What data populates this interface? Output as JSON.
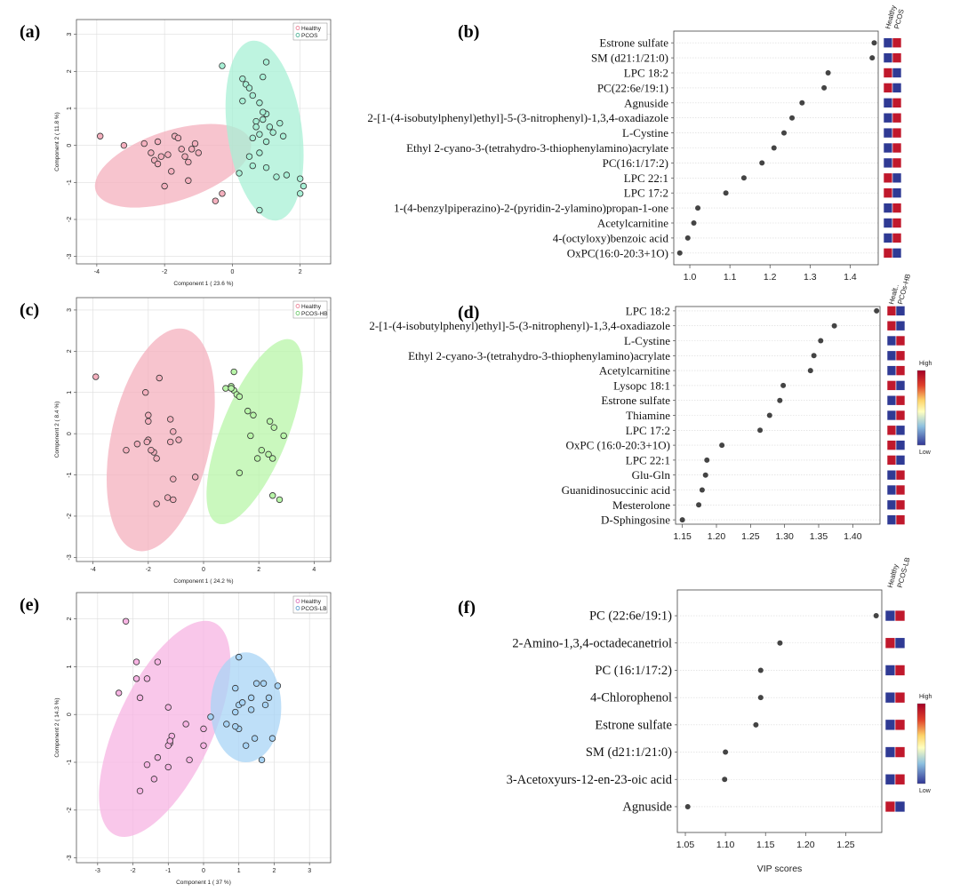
{
  "colors": {
    "high": "#c0182c",
    "low": "#2f3a94",
    "dot": "#444444",
    "grid": "#dddddd"
  },
  "chart_data": [
    {
      "panel": "(a)",
      "type": "scatter",
      "xlabel": "Component 1 ( 23.6 %)",
      "ylabel": "Component 2 ( 11.8 %)",
      "xlim": [
        -4.6,
        2.9
      ],
      "ylim": [
        -3.2,
        3.4
      ],
      "xticks": [
        -4,
        -2,
        0,
        2
      ],
      "yticks": [
        -3,
        -2,
        -1,
        0,
        1,
        2,
        3
      ],
      "legend": [
        "Healthy",
        "PCOS"
      ],
      "series": [
        {
          "name": "Healthy",
          "color": "#e8758c",
          "fill": "#f4b0be",
          "ellipse": {
            "cx": -1.75,
            "cy": -0.55,
            "rx": 2.4,
            "ry": 0.95,
            "angle": -18
          },
          "points": [
            [
              -3.9,
              0.25
            ],
            [
              -3.2,
              0
            ],
            [
              -2.6,
              0.05
            ],
            [
              -2.4,
              -0.2
            ],
            [
              -2.3,
              -0.4
            ],
            [
              -2.2,
              -0.5
            ],
            [
              -2.1,
              -0.3
            ],
            [
              -1.9,
              -0.25
            ],
            [
              -2.2,
              0.1
            ],
            [
              -1.7,
              0.25
            ],
            [
              -1.6,
              0.2
            ],
            [
              -1.5,
              -0.1
            ],
            [
              -1.4,
              -0.3
            ],
            [
              -1.3,
              -0.45
            ],
            [
              -1.2,
              -0.1
            ],
            [
              -1.0,
              -0.2
            ],
            [
              -1.8,
              -0.7
            ],
            [
              -2.0,
              -1.1
            ],
            [
              -1.3,
              -0.95
            ],
            [
              -0.5,
              -1.5
            ],
            [
              -0.3,
              -1.3
            ],
            [
              -1.1,
              0.05
            ]
          ]
        },
        {
          "name": "PCOS",
          "color": "#3aa88a",
          "fill": "#a8f0d6",
          "ellipse": {
            "cx": 0.95,
            "cy": 0.4,
            "rx": 1.1,
            "ry": 2.45,
            "angle": -8
          },
          "points": [
            [
              -0.3,
              2.15
            ],
            [
              0.3,
              1.8
            ],
            [
              0.3,
              1.2
            ],
            [
              0.4,
              1.65
            ],
            [
              0.5,
              1.55
            ],
            [
              0.6,
              1.35
            ],
            [
              0.8,
              1.15
            ],
            [
              0.9,
              1.85
            ],
            [
              1.0,
              2.25
            ],
            [
              0.7,
              0.65
            ],
            [
              0.9,
              0.7
            ],
            [
              1.0,
              0.85
            ],
            [
              1.1,
              0.5
            ],
            [
              0.6,
              0.2
            ],
            [
              0.8,
              0.3
            ],
            [
              1.0,
              0.1
            ],
            [
              1.2,
              0.35
            ],
            [
              1.4,
              0.6
            ],
            [
              1.5,
              0.25
            ],
            [
              0.5,
              -0.3
            ],
            [
              0.8,
              -0.2
            ],
            [
              1.0,
              -0.6
            ],
            [
              1.3,
              -0.85
            ],
            [
              1.6,
              -0.8
            ],
            [
              2.0,
              -0.9
            ],
            [
              2.1,
              -1.1
            ],
            [
              2.0,
              -1.3
            ],
            [
              0.6,
              -0.55
            ],
            [
              0.8,
              -1.75
            ],
            [
              0.2,
              -0.75
            ],
            [
              0.9,
              0.9
            ],
            [
              0.7,
              0.5
            ]
          ]
        }
      ]
    },
    {
      "panel": "(b)",
      "type": "scatter",
      "subtype": "vip",
      "xlim": [
        0.96,
        1.47
      ],
      "xticks": [
        1.0,
        1.1,
        1.2,
        1.3,
        1.4
      ],
      "heatmap_columns": [
        "Healthy",
        "PCOS"
      ],
      "labels": [
        "Estrone sulfate",
        "SM (d21:1/21:0)",
        "LPC 18:2",
        "PC(22:6e/19:1)",
        "Agnuside",
        "2-[1-(4-isobutylphenyl)ethyl]-5-(3-nitrophenyl)-1,3,4-oxadiazole",
        "L-Cystine",
        "Ethyl 2-cyano-3-(tetrahydro-3-thiophenylamino)acrylate",
        "PC(16:1/17:2)",
        "LPC 22:1",
        "LPC 17:2",
        "1-(4-benzylpiperazino)-2-(pyridin-2-ylamino)propan-1-one",
        "Acetylcarnitine",
        "4-(octyloxy)benzoic acid",
        "OxPC(16:0-20:3+1O)"
      ],
      "values": [
        1.46,
        1.455,
        1.345,
        1.335,
        1.28,
        1.255,
        1.235,
        1.21,
        1.18,
        1.135,
        1.09,
        1.02,
        1.01,
        0.995,
        0.975
      ],
      "heatmap": [
        [
          "low",
          "high"
        ],
        [
          "low",
          "high"
        ],
        [
          "high",
          "low"
        ],
        [
          "high",
          "low"
        ],
        [
          "low",
          "high"
        ],
        [
          "low",
          "high"
        ],
        [
          "low",
          "high"
        ],
        [
          "low",
          "high"
        ],
        [
          "low",
          "high"
        ],
        [
          "high",
          "low"
        ],
        [
          "high",
          "low"
        ],
        [
          "low",
          "high"
        ],
        [
          "low",
          "high"
        ],
        [
          "low",
          "high"
        ],
        [
          "high",
          "low"
        ]
      ]
    },
    {
      "panel": "(c)",
      "type": "scatter",
      "xlabel": "Component 1 ( 24.2 %)",
      "ylabel": "Component 2 ( 8.4 %)",
      "xlim": [
        -4.6,
        4.6
      ],
      "ylim": [
        -3.1,
        3.3
      ],
      "xticks": [
        -4,
        -2,
        0,
        2,
        4
      ],
      "yticks": [
        -3,
        -2,
        -1,
        0,
        1,
        2,
        3
      ],
      "legend": [
        "Healthy",
        "PCOS-HB"
      ],
      "series": [
        {
          "name": "Healthy",
          "color": "#e8758c",
          "fill": "#f4b0be",
          "ellipse": {
            "cx": -1.55,
            "cy": -0.15,
            "rx": 1.8,
            "ry": 2.75,
            "angle": 12
          },
          "points": [
            [
              -3.9,
              1.38
            ],
            [
              -2.1,
              1.0
            ],
            [
              -1.6,
              1.35
            ],
            [
              -2.0,
              0.45
            ],
            [
              -2.0,
              0.3
            ],
            [
              -1.2,
              0.35
            ],
            [
              -1.1,
              0.05
            ],
            [
              -2.0,
              -0.15
            ],
            [
              -2.4,
              -0.25
            ],
            [
              -2.8,
              -0.4
            ],
            [
              -1.8,
              -0.45
            ],
            [
              -1.7,
              -0.6
            ],
            [
              -1.2,
              -0.2
            ],
            [
              -0.9,
              -0.15
            ],
            [
              -1.1,
              -1.1
            ],
            [
              -0.3,
              -1.05
            ],
            [
              -1.3,
              -1.55
            ],
            [
              -1.1,
              -1.6
            ],
            [
              -1.7,
              -1.7
            ],
            [
              -1.9,
              -0.4
            ],
            [
              -2.05,
              -0.2
            ]
          ]
        },
        {
          "name": "PCOS-HB",
          "color": "#5cc25a",
          "fill": "#b8f5a8",
          "ellipse": {
            "cx": 1.85,
            "cy": 0.05,
            "rx": 1.2,
            "ry": 2.4,
            "angle": 22
          },
          "points": [
            [
              1.1,
              1.5
            ],
            [
              1.0,
              1.15
            ],
            [
              0.8,
              1.1
            ],
            [
              1.1,
              1.05
            ],
            [
              1.2,
              0.95
            ],
            [
              1.3,
              0.9
            ],
            [
              1.6,
              0.55
            ],
            [
              1.8,
              0.45
            ],
            [
              2.4,
              0.3
            ],
            [
              2.55,
              0.15
            ],
            [
              2.9,
              -0.05
            ],
            [
              1.7,
              -0.05
            ],
            [
              2.1,
              -0.4
            ],
            [
              2.35,
              -0.5
            ],
            [
              2.5,
              -0.6
            ],
            [
              1.95,
              -0.6
            ],
            [
              1.3,
              -0.95
            ],
            [
              2.5,
              -1.5
            ],
            [
              2.75,
              -1.6
            ],
            [
              1.0,
              1.1
            ]
          ]
        }
      ]
    },
    {
      "panel": "(d)",
      "type": "scatter",
      "subtype": "vip",
      "xlim": [
        1.14,
        1.44
      ],
      "xticks": [
        1.15,
        1.2,
        1.25,
        1.3,
        1.35,
        1.4
      ],
      "heatmap_columns": [
        "Healt..",
        "PCOs-HB"
      ],
      "colorbar": {
        "high": "High",
        "low": "Low"
      },
      "labels": [
        "LPC 18:2",
        "2-[1-(4-isobutylphenyl)ethyl]-5-(3-nitrophenyl)-1,3,4-oxadiazole",
        "L-Cystine",
        "Ethyl 2-cyano-3-(tetrahydro-3-thiophenylamino)acrylate",
        "Acetylcarnitine",
        "Lysopc 18:1",
        "Estrone sulfate",
        "Thiamine",
        "LPC 17:2",
        "OxPC (16:0-20:3+1O)",
        "LPC 22:1",
        "Glu-Gln",
        "Guanidinosuccinic acid",
        "Mesterolone",
        "D-Sphingosine"
      ],
      "values": [
        1.435,
        1.373,
        1.353,
        1.343,
        1.338,
        1.298,
        1.293,
        1.278,
        1.264,
        1.208,
        1.186,
        1.184,
        1.179,
        1.174,
        1.15
      ],
      "heatmap": [
        [
          "high",
          "low"
        ],
        [
          "high",
          "low"
        ],
        [
          "low",
          "high"
        ],
        [
          "low",
          "high"
        ],
        [
          "low",
          "high"
        ],
        [
          "high",
          "low"
        ],
        [
          "low",
          "high"
        ],
        [
          "low",
          "high"
        ],
        [
          "high",
          "low"
        ],
        [
          "high",
          "low"
        ],
        [
          "high",
          "low"
        ],
        [
          "low",
          "high"
        ],
        [
          "low",
          "high"
        ],
        [
          "low",
          "high"
        ],
        [
          "low",
          "high"
        ]
      ]
    },
    {
      "panel": "(e)",
      "type": "scatter",
      "xlabel": "Component 1 ( 37 %)",
      "ylabel": "Component 2 ( 14.3 %)",
      "xlim": [
        -3.6,
        3.6
      ],
      "ylim": [
        -3.1,
        2.55
      ],
      "xticks": [
        -3,
        -2,
        -1,
        0,
        1,
        2,
        3
      ],
      "yticks": [
        -3,
        -2,
        -1,
        0,
        1,
        2
      ],
      "legend": [
        "Healthy",
        "PCOS-LB"
      ],
      "series": [
        {
          "name": "Healthy",
          "color": "#d765b4",
          "fill": "#f7b4e3",
          "ellipse": {
            "cx": -1.1,
            "cy": -0.3,
            "rx": 1.35,
            "ry": 2.45,
            "angle": 25
          },
          "points": [
            [
              -2.2,
              1.95
            ],
            [
              -1.9,
              1.1
            ],
            [
              -1.3,
              1.1
            ],
            [
              -2.4,
              0.45
            ],
            [
              -1.9,
              0.75
            ],
            [
              -1.6,
              0.75
            ],
            [
              -1.8,
              0.35
            ],
            [
              -1.0,
              0.15
            ],
            [
              -0.9,
              -0.45
            ],
            [
              -0.95,
              -0.6
            ],
            [
              -0.5,
              -0.2
            ],
            [
              0.0,
              -0.3
            ],
            [
              -1.0,
              -0.65
            ],
            [
              -1.3,
              -0.9
            ],
            [
              -1.6,
              -1.05
            ],
            [
              -1.0,
              -1.1
            ],
            [
              -1.4,
              -1.35
            ],
            [
              -0.4,
              -0.95
            ],
            [
              0.0,
              -0.65
            ],
            [
              -1.8,
              -1.6
            ],
            [
              -0.95,
              -0.55
            ]
          ]
        },
        {
          "name": "PCOS-LB",
          "color": "#4a90c8",
          "fill": "#a8d4f5",
          "ellipse": {
            "cx": 1.2,
            "cy": 0.15,
            "rx": 1.0,
            "ry": 1.15,
            "angle": 0
          },
          "points": [
            [
              1.0,
              1.2
            ],
            [
              0.2,
              -0.05
            ],
            [
              0.9,
              0.55
            ],
            [
              1.0,
              0.2
            ],
            [
              0.9,
              0.05
            ],
            [
              1.1,
              0.25
            ],
            [
              1.35,
              0.35
            ],
            [
              1.5,
              0.65
            ],
            [
              1.7,
              0.65
            ],
            [
              2.1,
              0.6
            ],
            [
              1.85,
              0.35
            ],
            [
              1.75,
              0.2
            ],
            [
              1.35,
              0.1
            ],
            [
              1.0,
              -0.3
            ],
            [
              0.9,
              -0.25
            ],
            [
              1.2,
              -0.65
            ],
            [
              1.45,
              -0.5
            ],
            [
              1.95,
              -0.5
            ],
            [
              1.65,
              -0.95
            ],
            [
              0.65,
              -0.2
            ]
          ]
        }
      ]
    },
    {
      "panel": "(f)",
      "type": "scatter",
      "subtype": "vip",
      "xlim": [
        1.04,
        1.295
      ],
      "xticks": [
        1.05,
        1.1,
        1.15,
        1.2,
        1.25
      ],
      "xlabel": "VIP scores",
      "heatmap_columns": [
        "Healthy",
        "PCOS-LB"
      ],
      "colorbar": {
        "high": "High",
        "low": "Low"
      },
      "labels": [
        "PC (22:6e/19:1)",
        "2-Amino-1,3,4-octadecanetriol",
        "PC (16:1/17:2)",
        "4-Chlorophenol",
        "Estrone sulfate",
        "SM (d21:1/21:0)",
        "3-Acetoxyurs-12-en-23-oic acid",
        "Agnuside"
      ],
      "values": [
        1.288,
        1.168,
        1.144,
        1.144,
        1.138,
        1.1,
        1.099,
        1.053
      ],
      "heatmap": [
        [
          "low",
          "high"
        ],
        [
          "high",
          "low"
        ],
        [
          "low",
          "high"
        ],
        [
          "low",
          "high"
        ],
        [
          "low",
          "high"
        ],
        [
          "low",
          "high"
        ],
        [
          "low",
          "high"
        ],
        [
          "high",
          "low"
        ]
      ]
    }
  ]
}
